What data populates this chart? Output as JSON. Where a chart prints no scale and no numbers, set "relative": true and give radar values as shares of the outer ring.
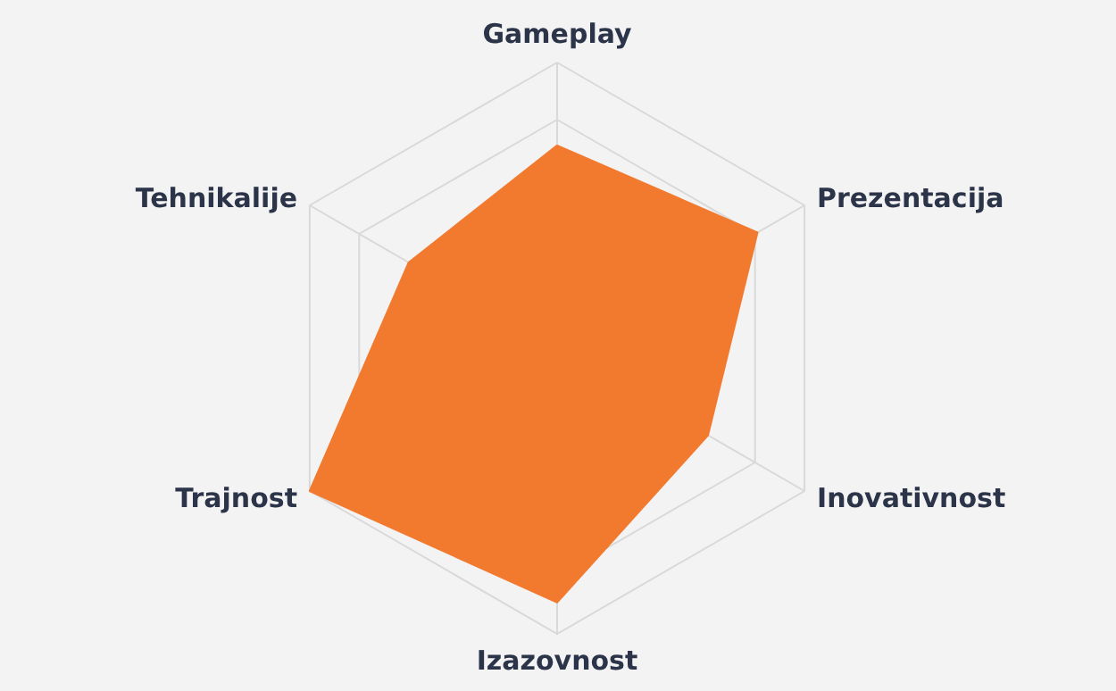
{
  "chart_data": {
    "type": "radar",
    "relative": true,
    "grid": true,
    "categories": [
      "Gameplay",
      "Prezentacija",
      "Inovativnost",
      "Izazovnost",
      "Trajnost",
      "Tehnikalije"
    ],
    "series": [
      {
        "color": "#f27a2f",
        "values": [
          0.71,
          0.81,
          0.61,
          0.89,
          1.0,
          0.6
        ]
      }
    ]
  }
}
